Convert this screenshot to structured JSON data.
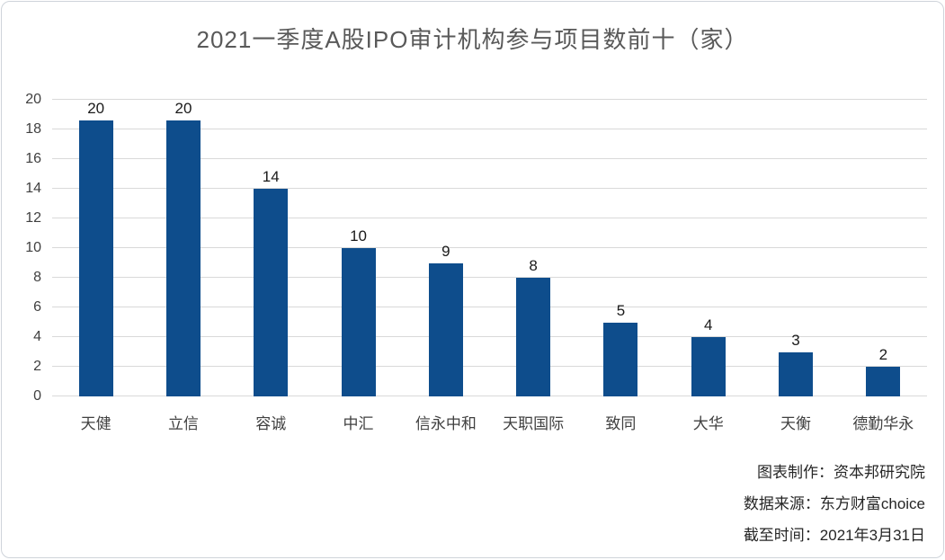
{
  "chart_data": {
    "type": "bar",
    "title": "2021一季度A股IPO审计机构参与项目数前十（家）",
    "categories": [
      "天健",
      "立信",
      "容诚",
      "中汇",
      "信永中和",
      "天职国际",
      "致同",
      "大华",
      "天衡",
      "德勤华永"
    ],
    "values": [
      20,
      20,
      14,
      10,
      9,
      8,
      5,
      4,
      3,
      2
    ],
    "xlabel": "",
    "ylabel": "",
    "ylim": [
      0,
      20
    ],
    "ytick_step": 2,
    "grid": "horizontal",
    "legend": "none",
    "data_labels": true,
    "bar_color": "#0e4d8c"
  },
  "footer": {
    "notes": [
      "图表制作：资本邦研究院",
      "数据来源：东方财富choice",
      "截至时间：2021年3月31日"
    ]
  }
}
